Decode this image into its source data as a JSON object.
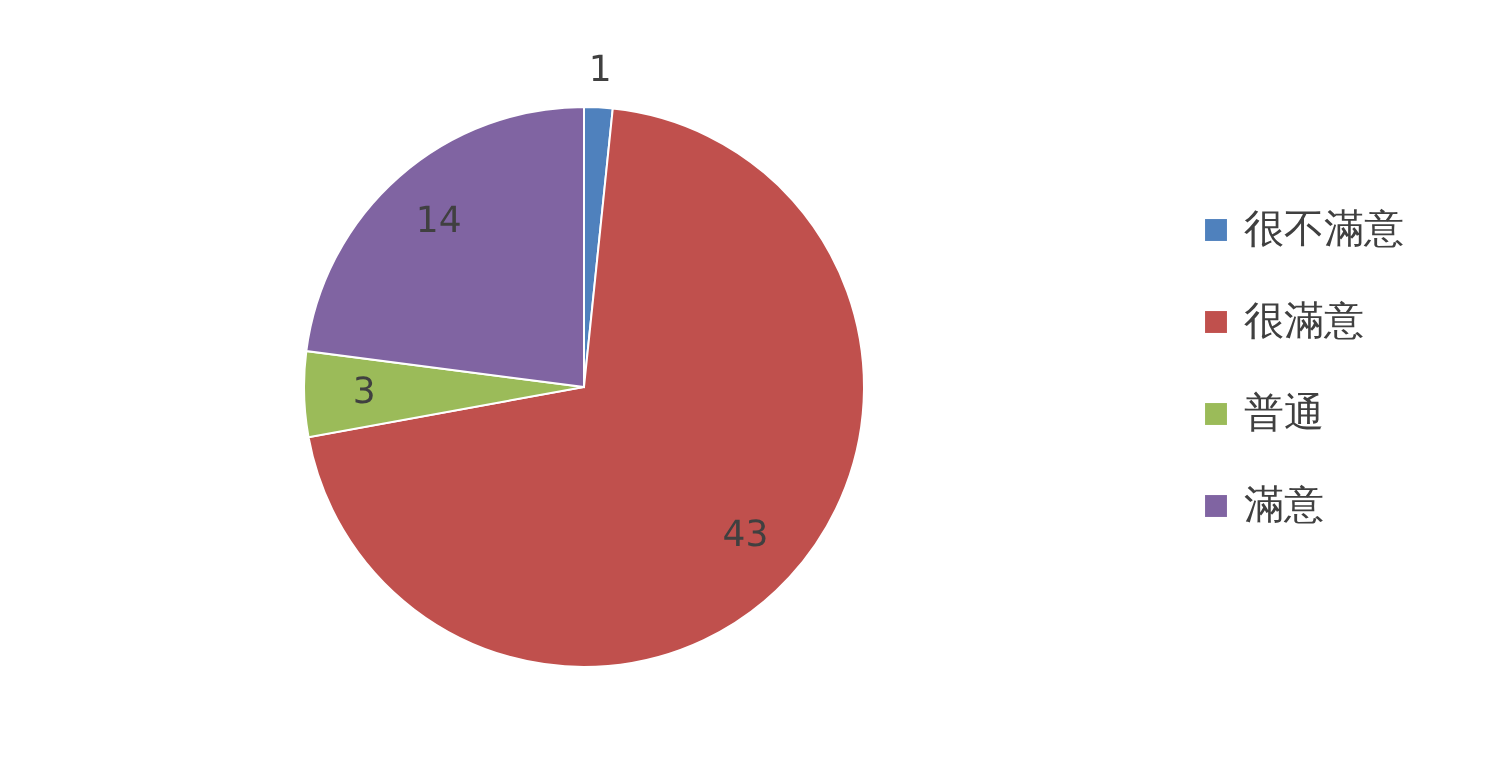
{
  "chart_data": {
    "type": "pie",
    "categories": [
      "很不滿意",
      "很滿意",
      "普通",
      "滿意"
    ],
    "values": [
      1,
      43,
      3,
      14
    ],
    "colors": [
      "#4f81bd",
      "#c0504d",
      "#9bbb59",
      "#8064a2"
    ],
    "data_labels": true,
    "legend": "right"
  }
}
